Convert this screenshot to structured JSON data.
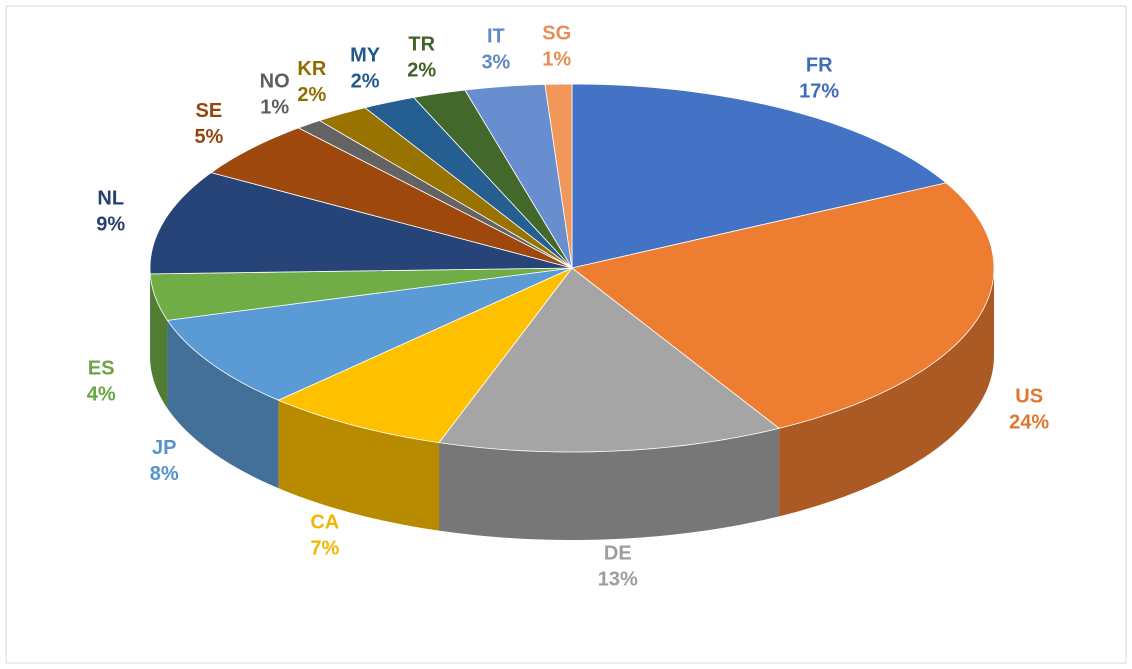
{
  "chart_data": {
    "type": "pie3d",
    "categories": [
      "FR",
      "US",
      "DE",
      "CA",
      "JP",
      "ES",
      "NL",
      "SE",
      "NO",
      "KR",
      "MY",
      "TR",
      "IT",
      "SG"
    ],
    "values": [
      17,
      24,
      13,
      7,
      8,
      4,
      9,
      5,
      1,
      2,
      2,
      2,
      3,
      1
    ],
    "value_labels": [
      "17%",
      "24%",
      "13%",
      "7%",
      "8%",
      "4%",
      "9%",
      "5%",
      "1%",
      "2%",
      "2%",
      "2%",
      "3%",
      "1%"
    ],
    "colors": [
      "#4472c4",
      "#ed7d31",
      "#a5a5a5",
      "#ffc000",
      "#5b9bd5",
      "#70ad47",
      "#264478",
      "#9e480e",
      "#636363",
      "#997300",
      "#255e91",
      "#43682b",
      "#698ed0",
      "#f1975a"
    ]
  }
}
